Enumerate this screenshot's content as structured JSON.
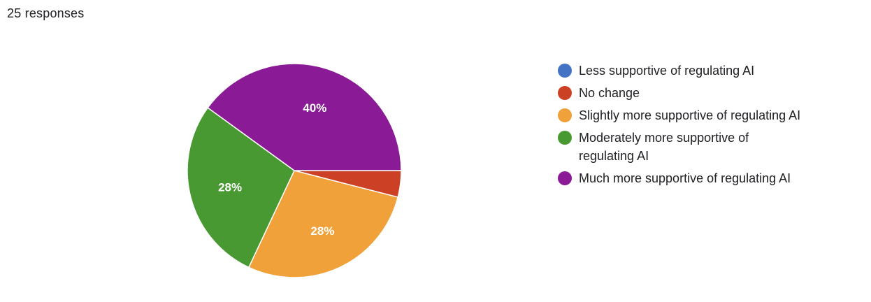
{
  "header": {
    "responses": "25 responses"
  },
  "chart_data": {
    "type": "pie",
    "total_responses": 25,
    "slices": [
      {
        "label": "Less supportive of regulating AI",
        "value": 0,
        "color": "#4472c4"
      },
      {
        "label": "No change",
        "value": 4,
        "color": "#cc4125"
      },
      {
        "label": "Slightly more supportive of regulating AI",
        "value": 28,
        "color": "#f1a13a"
      },
      {
        "label": "Moderately more supportive of regulating AI",
        "value": 28,
        "color": "#489931"
      },
      {
        "label": "Much more supportive of regulating AI",
        "value": 40,
        "color": "#8b1a96"
      }
    ],
    "data_labels": [
      "",
      "",
      "28%",
      "28%",
      "40%"
    ],
    "legend_position": "right"
  }
}
